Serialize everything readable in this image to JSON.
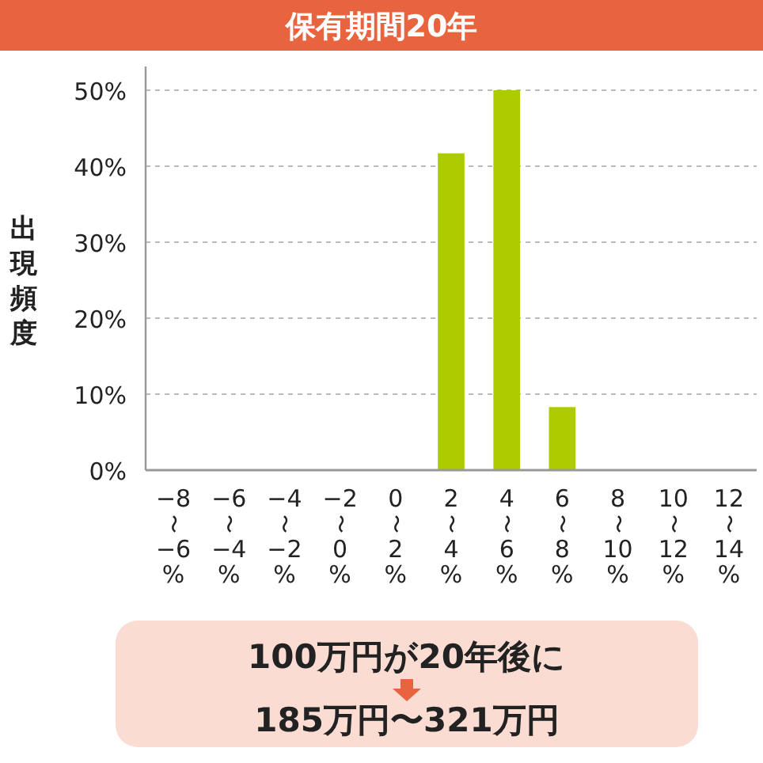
{
  "chart_data": {
    "type": "bar",
    "title": "保有期間20年",
    "ylabel": "出現頻度",
    "categories": [
      "−8〜−6%",
      "−6〜−4%",
      "−4〜−2%",
      "−2〜0%",
      "0〜2%",
      "2〜4%",
      "4〜6%",
      "6〜8%",
      "8〜10%",
      "10〜12%",
      "12〜14%"
    ],
    "values": [
      0,
      0,
      0,
      0,
      0,
      41.7,
      50,
      8.3,
      0,
      0,
      0
    ],
    "color": "#aecb00",
    "ylim": [
      0,
      50
    ],
    "yticks": [
      {
        "value": 0,
        "label": "0%"
      },
      {
        "value": 10,
        "label": "10%"
      },
      {
        "value": 20,
        "label": "20%"
      },
      {
        "value": 30,
        "label": "30%"
      },
      {
        "value": 40,
        "label": "40%"
      },
      {
        "value": 50,
        "label": "50%"
      }
    ],
    "grid": "y",
    "annotations": [
      "100万円が20年後に",
      "185万円〜321万円"
    ]
  }
}
